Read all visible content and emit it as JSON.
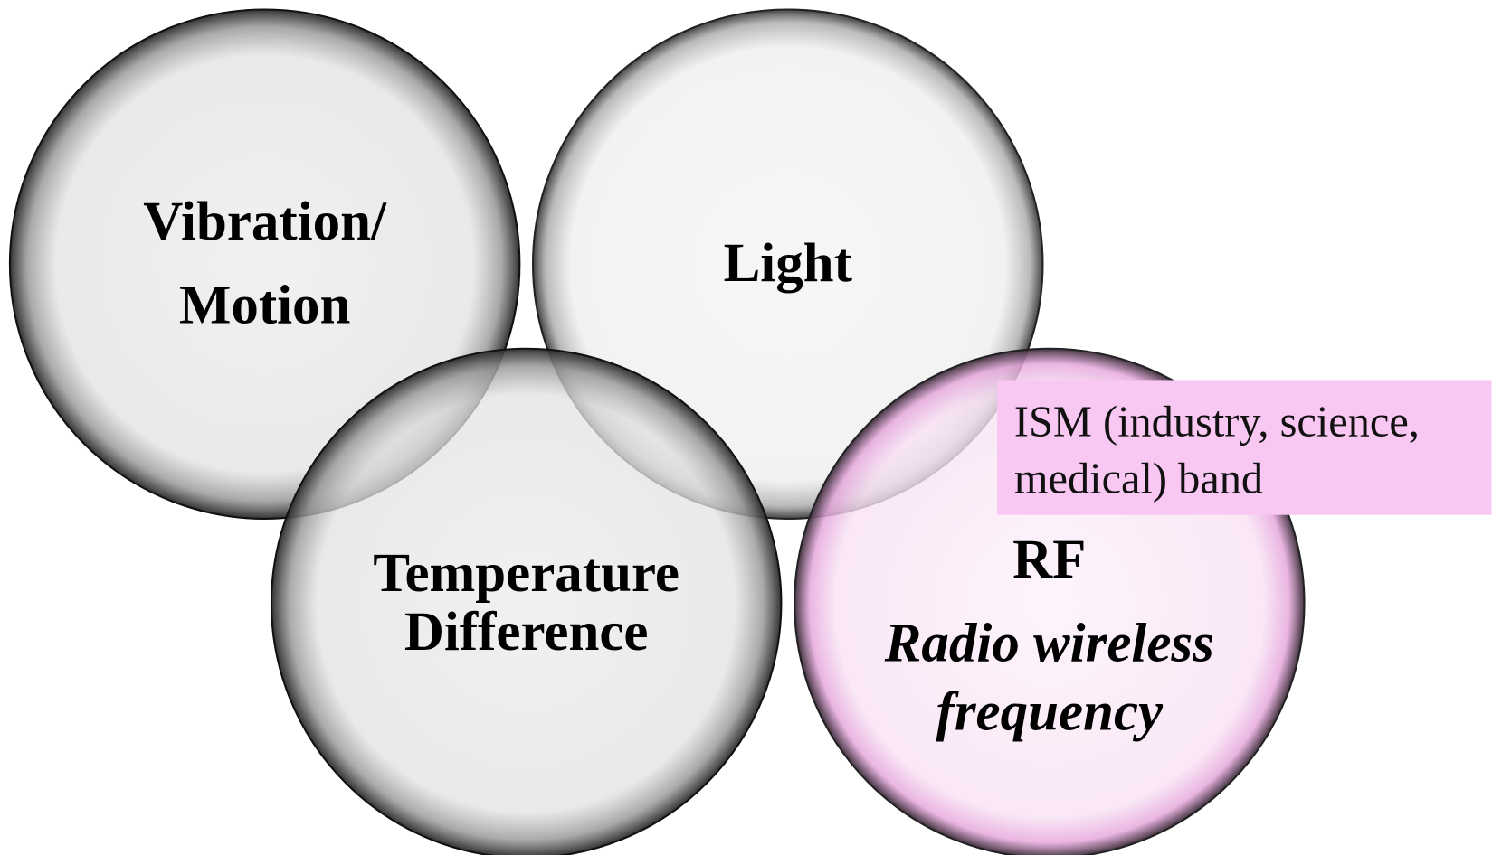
{
  "nodes": [
    {
      "label": [
        "Vibration/",
        "Motion"
      ]
    },
    {
      "label": [
        "Light"
      ]
    },
    {
      "label": [
        "Temperature",
        "Difference"
      ]
    },
    {
      "label": [
        "RF"
      ],
      "sublabel": [
        "Radio wireless",
        "frequency"
      ]
    }
  ],
  "callout": [
    "ISM (industry, science,",
    "medical) band"
  ]
}
